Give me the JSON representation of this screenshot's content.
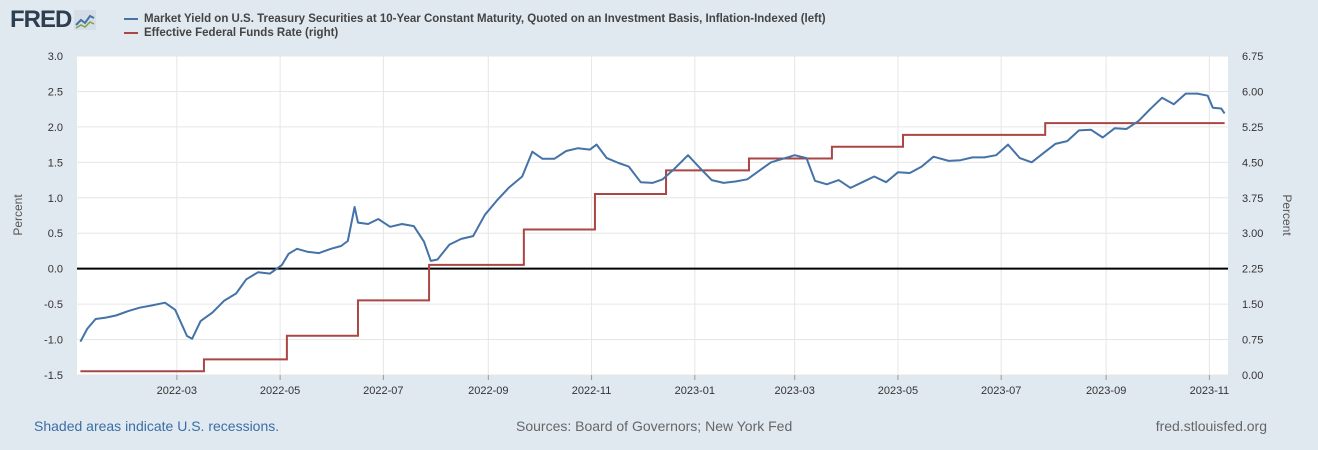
{
  "logo": {
    "text": "FRED",
    "icon": "trend-line-icon"
  },
  "legend": [
    {
      "label": "Market Yield on U.S. Treasury Securities at 10-Year Constant Maturity, Quoted on an Investment Basis, Inflation-Indexed (left)",
      "color": "#4572a7"
    },
    {
      "label": "Effective Federal Funds Rate (right)",
      "color": "#aa4643"
    }
  ],
  "footer": {
    "recessions_note": "Shaded areas indicate U.S. recessions.",
    "sources": "Sources: Board of Governors; New York Fed",
    "site": "fred.stlouisfed.org"
  },
  "chart_data": {
    "type": "line",
    "x_ticks": [
      "2022-03",
      "2022-05",
      "2022-07",
      "2022-09",
      "2022-11",
      "2023-01",
      "2023-03",
      "2023-05",
      "2023-07",
      "2023-09",
      "2023-11"
    ],
    "left_axis": {
      "label": "Percent",
      "ylim": [
        -1.5,
        3.0
      ],
      "ticks": [
        "-1.5",
        "-1.0",
        "-0.5",
        "0.0",
        "0.5",
        "1.0",
        "1.5",
        "2.0",
        "2.5",
        "3.0"
      ]
    },
    "right_axis": {
      "label": "Percent",
      "ylim": [
        0.0,
        6.75
      ],
      "ticks": [
        "0.00",
        "0.75",
        "1.50",
        "2.25",
        "3.00",
        "3.75",
        "4.50",
        "5.25",
        "6.00",
        "6.75"
      ]
    },
    "grid": true,
    "series": [
      {
        "name": "Market Yield on U.S. Treasury Securities at 10-Year Constant Maturity, Quoted on an Investment Basis, Inflation-Indexed (left)",
        "axis": "left",
        "color": "#4572a7",
        "points": [
          [
            "2022-01-03",
            -1.03
          ],
          [
            "2022-01-07",
            -0.85
          ],
          [
            "2022-01-12",
            -0.71
          ],
          [
            "2022-01-18",
            -0.69
          ],
          [
            "2022-01-24",
            -0.66
          ],
          [
            "2022-01-31",
            -0.6
          ],
          [
            "2022-02-07",
            -0.55
          ],
          [
            "2022-02-14",
            -0.52
          ],
          [
            "2022-02-22",
            -0.48
          ],
          [
            "2022-02-28",
            -0.58
          ],
          [
            "2022-03-07",
            -0.95
          ],
          [
            "2022-03-10",
            -0.99
          ],
          [
            "2022-03-15",
            -0.74
          ],
          [
            "2022-03-22",
            -0.62
          ],
          [
            "2022-03-29",
            -0.45
          ],
          [
            "2022-04-05",
            -0.35
          ],
          [
            "2022-04-11",
            -0.15
          ],
          [
            "2022-04-18",
            -0.05
          ],
          [
            "2022-04-25",
            -0.07
          ],
          [
            "2022-05-02",
            0.05
          ],
          [
            "2022-05-06",
            0.21
          ],
          [
            "2022-05-11",
            0.28
          ],
          [
            "2022-05-17",
            0.24
          ],
          [
            "2022-05-24",
            0.22
          ],
          [
            "2022-05-31",
            0.28
          ],
          [
            "2022-06-06",
            0.32
          ],
          [
            "2022-06-10",
            0.39
          ],
          [
            "2022-06-14",
            0.87
          ],
          [
            "2022-06-16",
            0.65
          ],
          [
            "2022-06-22",
            0.63
          ],
          [
            "2022-06-28",
            0.7
          ],
          [
            "2022-07-05",
            0.59
          ],
          [
            "2022-07-12",
            0.63
          ],
          [
            "2022-07-19",
            0.6
          ],
          [
            "2022-07-25",
            0.38
          ],
          [
            "2022-07-29",
            0.11
          ],
          [
            "2022-08-02",
            0.13
          ],
          [
            "2022-08-09",
            0.34
          ],
          [
            "2022-08-16",
            0.42
          ],
          [
            "2022-08-23",
            0.46
          ],
          [
            "2022-08-30",
            0.76
          ],
          [
            "2022-09-06",
            0.96
          ],
          [
            "2022-09-13",
            1.14
          ],
          [
            "2022-09-21",
            1.3
          ],
          [
            "2022-09-27",
            1.65
          ],
          [
            "2022-10-03",
            1.55
          ],
          [
            "2022-10-10",
            1.55
          ],
          [
            "2022-10-17",
            1.66
          ],
          [
            "2022-10-24",
            1.7
          ],
          [
            "2022-10-31",
            1.68
          ],
          [
            "2022-11-04",
            1.75
          ],
          [
            "2022-11-10",
            1.56
          ],
          [
            "2022-11-17",
            1.49
          ],
          [
            "2022-11-23",
            1.44
          ],
          [
            "2022-11-30",
            1.22
          ],
          [
            "2022-12-07",
            1.21
          ],
          [
            "2022-12-13",
            1.26
          ],
          [
            "2022-12-20",
            1.41
          ],
          [
            "2022-12-28",
            1.6
          ],
          [
            "2023-01-04",
            1.42
          ],
          [
            "2023-01-11",
            1.25
          ],
          [
            "2023-01-18",
            1.21
          ],
          [
            "2023-01-25",
            1.23
          ],
          [
            "2023-02-01",
            1.26
          ],
          [
            "2023-02-08",
            1.38
          ],
          [
            "2023-02-15",
            1.5
          ],
          [
            "2023-02-22",
            1.55
          ],
          [
            "2023-03-01",
            1.6
          ],
          [
            "2023-03-08",
            1.56
          ],
          [
            "2023-03-13",
            1.24
          ],
          [
            "2023-03-20",
            1.19
          ],
          [
            "2023-03-27",
            1.25
          ],
          [
            "2023-04-03",
            1.14
          ],
          [
            "2023-04-10",
            1.22
          ],
          [
            "2023-04-17",
            1.3
          ],
          [
            "2023-04-24",
            1.22
          ],
          [
            "2023-05-01",
            1.36
          ],
          [
            "2023-05-08",
            1.35
          ],
          [
            "2023-05-15",
            1.44
          ],
          [
            "2023-05-22",
            1.58
          ],
          [
            "2023-05-31",
            1.52
          ],
          [
            "2023-06-07",
            1.53
          ],
          [
            "2023-06-14",
            1.57
          ],
          [
            "2023-06-21",
            1.57
          ],
          [
            "2023-06-28",
            1.6
          ],
          [
            "2023-07-05",
            1.75
          ],
          [
            "2023-07-12",
            1.56
          ],
          [
            "2023-07-19",
            1.5
          ],
          [
            "2023-07-26",
            1.63
          ],
          [
            "2023-08-02",
            1.76
          ],
          [
            "2023-08-09",
            1.8
          ],
          [
            "2023-08-16",
            1.95
          ],
          [
            "2023-08-23",
            1.96
          ],
          [
            "2023-08-30",
            1.85
          ],
          [
            "2023-09-06",
            1.98
          ],
          [
            "2023-09-13",
            1.97
          ],
          [
            "2023-09-20",
            2.08
          ],
          [
            "2023-09-27",
            2.25
          ],
          [
            "2023-10-04",
            2.41
          ],
          [
            "2023-10-11",
            2.32
          ],
          [
            "2023-10-18",
            2.47
          ],
          [
            "2023-10-25",
            2.47
          ],
          [
            "2023-10-31",
            2.44
          ],
          [
            "2023-11-03",
            2.27
          ],
          [
            "2023-11-08",
            2.26
          ],
          [
            "2023-11-10",
            2.19
          ]
        ]
      },
      {
        "name": "Effective Federal Funds Rate (right)",
        "axis": "right",
        "color": "#aa4643",
        "steps": [
          [
            "2022-01-03",
            0.08
          ],
          [
            "2022-03-17",
            0.33
          ],
          [
            "2022-05-05",
            0.83
          ],
          [
            "2022-06-16",
            1.58
          ],
          [
            "2022-07-28",
            2.33
          ],
          [
            "2022-09-22",
            3.08
          ],
          [
            "2022-11-03",
            3.83
          ],
          [
            "2022-12-15",
            4.33
          ],
          [
            "2023-02-02",
            4.58
          ],
          [
            "2023-03-23",
            4.83
          ],
          [
            "2023-05-04",
            5.08
          ],
          [
            "2023-07-27",
            5.33
          ],
          [
            "2023-11-10",
            5.33
          ]
        ]
      }
    ]
  }
}
